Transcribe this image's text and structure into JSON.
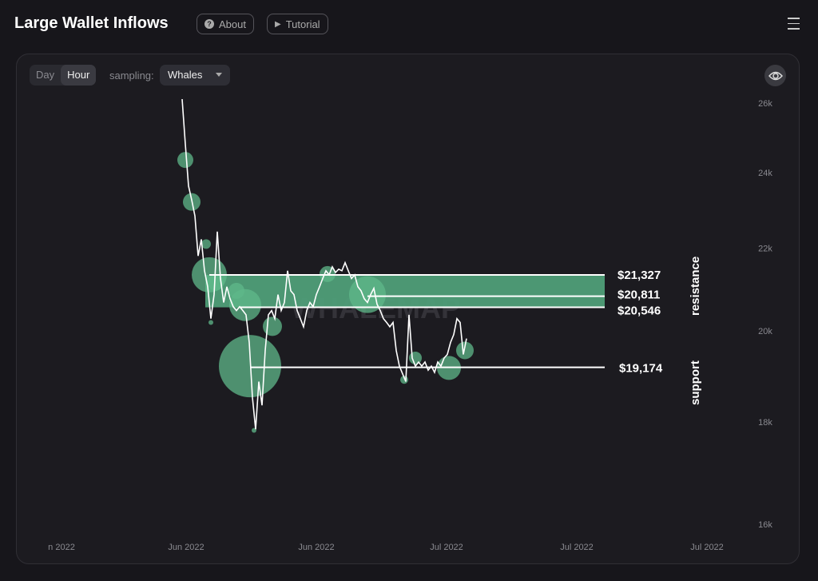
{
  "header": {
    "title": "Large Wallet Inflows",
    "about_label": "About",
    "tutorial_label": "Tutorial",
    "about_icon": "question-circle-icon",
    "tutorial_icon": "play-icon",
    "menu_icon": "hamburger-icon"
  },
  "toolbar": {
    "resolutions": [
      "Day",
      "Hour"
    ],
    "active_resolution": "Hour",
    "sampling_label": "sampling:",
    "sampling_value": "Whales",
    "visibility_icon": "eye-icon"
  },
  "watermark": "WHALEMAP",
  "colors": {
    "bubble": "#5fb88a",
    "band": "#4f9e78",
    "line": "#ffffff",
    "background": "#1c1b20"
  },
  "chart_data": {
    "type": "line",
    "y_scale": "log",
    "ylim": [
      16000,
      26000
    ],
    "y_ticks": [
      {
        "value": 26000,
        "label": "26k"
      },
      {
        "value": 24000,
        "label": "24k"
      },
      {
        "value": 22000,
        "label": "22k"
      },
      {
        "value": 20000,
        "label": "20k"
      },
      {
        "value": 18000,
        "label": "18k"
      },
      {
        "value": 16000,
        "label": "16k"
      }
    ],
    "x_tick_labels": [
      "n 2022",
      "Jun 2022",
      "Jun 2022",
      "Jul 2022",
      "Jul 2022",
      "Jul 2022"
    ],
    "price": {
      "start": "2022-05-31T12:00",
      "step_hours": 8,
      "values": [
        26120,
        24800,
        23630,
        23250,
        22830,
        21800,
        22220,
        21430,
        21040,
        20280,
        20850,
        22420,
        21240,
        20660,
        21040,
        20750,
        20560,
        20470,
        20560,
        20470,
        20370,
        19730,
        18520,
        17850,
        18860,
        18350,
        19550,
        20370,
        20470,
        20280,
        20850,
        20470,
        20660,
        21430,
        20940,
        20850,
        20470,
        20280,
        20090,
        20470,
        20660,
        20560,
        20850,
        21040,
        21240,
        21430,
        21330,
        21530,
        21390,
        21470,
        21430,
        21630,
        21430,
        21240,
        21330,
        21040,
        20940,
        20750,
        20660,
        20850,
        21000,
        20620,
        20470,
        20280,
        20190,
        20090,
        20190,
        19550,
        19200,
        19030,
        18860,
        20370,
        19380,
        19200,
        19290,
        19200,
        19290,
        19110,
        19200,
        19060,
        19290,
        19200,
        19380,
        19460,
        19730,
        19910,
        20280,
        20190,
        19460,
        19820
      ]
    },
    "inflows": [
      {
        "time": "2022-05-31T20:00",
        "price": 24350,
        "size": 10
      },
      {
        "time": "2022-06-01T12:00",
        "price": 23200,
        "size": 11
      },
      {
        "time": "2022-06-03T00:00",
        "price": 22100,
        "size": 6
      },
      {
        "time": "2022-06-03T08:00",
        "price": 21330,
        "size": 22
      },
      {
        "time": "2022-06-03T12:00",
        "price": 20190,
        "size": 3
      },
      {
        "time": "2022-06-04T00:00",
        "price": 21140,
        "size": 10
      },
      {
        "time": "2022-06-06T04:00",
        "price": 20940,
        "size": 10
      },
      {
        "time": "2022-06-07T02:00",
        "price": 20600,
        "size": 20
      },
      {
        "time": "2022-06-07T14:00",
        "price": 19200,
        "size": 39
      },
      {
        "time": "2022-06-08T00:00",
        "price": 17830,
        "size": 3
      },
      {
        "time": "2022-06-09T22:00",
        "price": 20100,
        "size": 12
      },
      {
        "time": "2022-06-15T16:00",
        "price": 21350,
        "size": 10
      },
      {
        "time": "2022-06-19T20:00",
        "price": 20850,
        "size": 23
      },
      {
        "time": "2022-06-23T16:00",
        "price": 18900,
        "size": 5
      },
      {
        "time": "2022-06-24T20:00",
        "price": 19380,
        "size": 8
      },
      {
        "time": "2022-06-28T08:00",
        "price": 19160,
        "size": 15
      },
      {
        "time": "2022-06-30T00:00",
        "price": 19550,
        "size": 11
      }
    ],
    "resistance": {
      "label": "resistance",
      "levels": [
        {
          "value": 21327,
          "label": "$21,327"
        },
        {
          "value": 20811,
          "label": "$20,811"
        },
        {
          "value": 20546,
          "label": "$20,546"
        }
      ]
    },
    "support": {
      "label": "support",
      "levels": [
        {
          "value": 19174,
          "label": "$19,174"
        }
      ]
    }
  }
}
